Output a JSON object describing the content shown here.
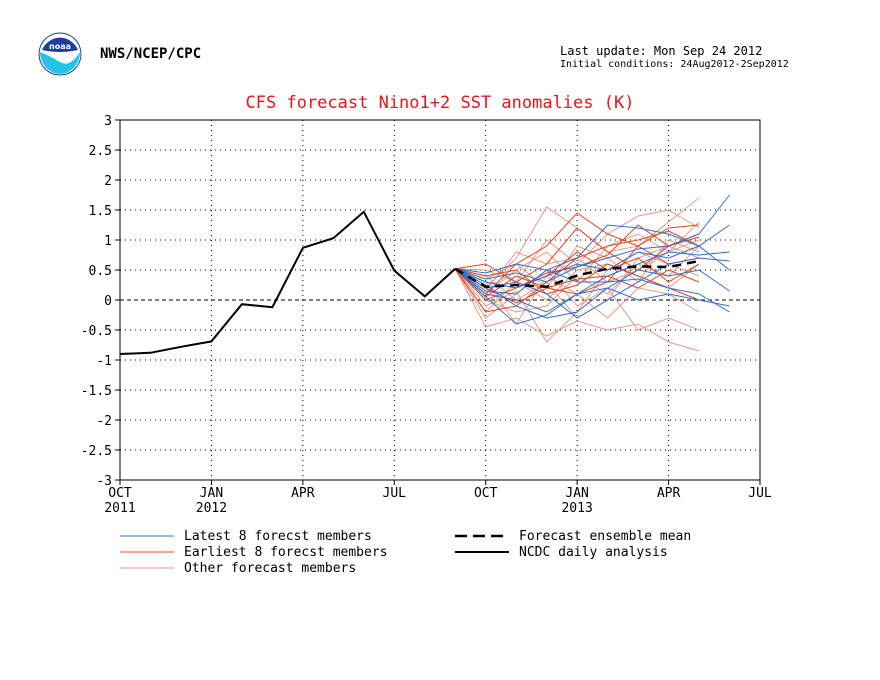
{
  "header": {
    "agency": "NWS/NCEP/CPC",
    "last_update": "Last update: Mon Sep 24 2012",
    "initial_conditions": "Initial conditions: 24Aug2012-2Sep2012",
    "logo_text": "noaa"
  },
  "colors": {
    "title": "#e8141b",
    "latest": "#2f6fcf",
    "earliest": "#e8431b",
    "other": "#e49a86",
    "analysis": "#000000",
    "mean": "#000000"
  },
  "chart_data": {
    "type": "line",
    "title": "CFS forecast Nino1+2 SST anomalies (K)",
    "ylim": [
      -3,
      3
    ],
    "yticks": [
      "3",
      "2.5",
      "2",
      "1.5",
      "1",
      "0.5",
      "0",
      "-0.5",
      "-1",
      "-1.5",
      "-2",
      "-2.5",
      "-3"
    ],
    "xticks": [
      {
        "label": "OCT",
        "year": "2011"
      },
      {
        "label": "JAN",
        "year": "2012"
      },
      {
        "label": "APR",
        "year": ""
      },
      {
        "label": "JUL",
        "year": ""
      },
      {
        "label": "OCT",
        "year": ""
      },
      {
        "label": "JAN",
        "year": "2013"
      },
      {
        "label": "APR",
        "year": ""
      },
      {
        "label": "JUL",
        "year": ""
      }
    ],
    "grid": true,
    "months": [
      "Oct 2011",
      "Nov 2011",
      "Dec 2011",
      "Jan 2012",
      "Feb 2012",
      "Mar 2012",
      "Apr 2012",
      "May 2012",
      "Jun 2012",
      "Jul 2012",
      "Aug 2012",
      "Sep 2012",
      "Oct 2012",
      "Nov 2012",
      "Dec 2012",
      "Jan 2013",
      "Feb 2013",
      "Mar 2013",
      "Apr 2013",
      "May 2013",
      "Jun 2013",
      "Jul 2013"
    ],
    "analysis": {
      "name": "NCDC daily analysis",
      "values": [
        -0.9,
        -0.88,
        -0.78,
        -0.69,
        -0.07,
        -0.12,
        0.87,
        1.03,
        1.47,
        0.49,
        0.06,
        0.52
      ]
    },
    "ensemble_mean": {
      "name": "Forecast ensemble mean",
      "values": [
        0.52,
        0.22,
        0.25,
        0.22,
        0.41,
        0.52,
        0.56,
        0.55,
        0.65
      ]
    },
    "members": {
      "latest": {
        "name": "Latest 8 forecst members",
        "series": [
          [
            0.52,
            0.35,
            0.45,
            0.3,
            0.55,
            0.7,
            0.85,
            0.9,
            1.1,
            1.75
          ],
          [
            0.52,
            0.1,
            0.0,
            -0.2,
            0.1,
            0.4,
            0.6,
            0.8,
            0.75,
            0.8
          ],
          [
            0.52,
            0.2,
            0.3,
            0.1,
            -0.3,
            0.0,
            0.3,
            0.6,
            0.7,
            0.65
          ],
          [
            0.52,
            0.25,
            -0.1,
            -0.3,
            -0.2,
            0.2,
            0.5,
            0.4,
            0.5,
            0.15
          ],
          [
            0.52,
            0.45,
            0.6,
            0.5,
            0.7,
            1.25,
            1.2,
            1.1,
            0.9,
            0.5
          ],
          [
            0.52,
            0.05,
            -0.4,
            -0.25,
            0.1,
            0.2,
            0.0,
            0.1,
            0.0,
            -0.1
          ],
          [
            0.52,
            0.3,
            0.2,
            0.4,
            0.6,
            0.5,
            0.8,
            0.7,
            0.9,
            1.25
          ],
          [
            0.52,
            0.15,
            0.1,
            0.5,
            0.3,
            0.3,
            0.35,
            0.2,
            0.1,
            -0.2
          ]
        ]
      },
      "earliest": {
        "name": "Earliest 8 forecst members",
        "series": [
          [
            0.52,
            0.1,
            0.6,
            0.9,
            1.45,
            1.1,
            0.9,
            1.2,
            1.25
          ],
          [
            0.52,
            0.3,
            0.2,
            0.4,
            0.8,
            0.5,
            0.7,
            0.3,
            0.6
          ],
          [
            0.52,
            -0.2,
            -0.1,
            0.3,
            0.7,
            0.9,
            1.0,
            1.15,
            0.9
          ],
          [
            0.52,
            0.4,
            0.5,
            0.1,
            0.25,
            0.6,
            0.4,
            0.2,
            0.0
          ],
          [
            0.52,
            0.0,
            0.2,
            0.45,
            0.55,
            0.75,
            1.25,
            0.9,
            1.1
          ],
          [
            0.52,
            0.2,
            -0.05,
            0.2,
            0.1,
            0.3,
            0.9,
            0.6,
            0.7
          ],
          [
            0.52,
            0.6,
            0.3,
            0.6,
            1.2,
            0.8,
            0.5,
            0.9,
            1.05
          ],
          [
            0.52,
            0.05,
            0.4,
            0.2,
            0.35,
            0.4,
            0.2,
            0.5,
            0.3
          ]
        ]
      },
      "other": {
        "name": "Other forecast members",
        "series": [
          [
            0.52,
            -0.45,
            -0.3,
            -0.6,
            -0.35,
            -0.5,
            -0.4,
            -0.7,
            -0.85
          ],
          [
            0.52,
            0.2,
            0.7,
            1.55,
            1.2,
            0.8,
            0.9,
            1.3,
            1.7
          ],
          [
            0.52,
            -0.3,
            0.1,
            0.5,
            -0.1,
            0.2,
            -0.5,
            -0.3,
            -0.5
          ],
          [
            0.52,
            0.5,
            0.3,
            1.0,
            0.6,
            1.1,
            1.4,
            1.5,
            1.2
          ],
          [
            0.52,
            0.0,
            -0.2,
            -0.1,
            0.4,
            0.1,
            0.6,
            0.4,
            0.9
          ],
          [
            0.52,
            0.35,
            0.6,
            0.2,
            0.9,
            0.7,
            0.3,
            1.0,
            0.8
          ],
          [
            0.52,
            -0.1,
            0.15,
            -0.7,
            -0.2,
            0.5,
            0.8,
            0.6,
            0.4
          ],
          [
            0.52,
            0.3,
            -0.4,
            0.4,
            0.1,
            -0.3,
            0.2,
            0.1,
            -0.2
          ],
          [
            0.52,
            0.1,
            0.5,
            0.8,
            0.3,
            0.9,
            1.1,
            0.8,
            1.0
          ],
          [
            0.52,
            -0.2,
            0.3,
            0.0,
            0.5,
            0.6,
            0.4,
            0.2,
            0.6
          ],
          [
            0.52,
            0.4,
            0.0,
            0.3,
            -0.3,
            0.0,
            0.7,
            0.9,
            0.7
          ],
          [
            0.52,
            0.15,
            0.8,
            0.6,
            0.7,
            0.3,
            0.5,
            0.8,
            1.3
          ]
        ]
      }
    },
    "legend": [
      {
        "label": "Latest 8 forecst members",
        "key": "latest",
        "style": "thin"
      },
      {
        "label": "Earliest 8 forecst members",
        "key": "earliest",
        "style": "thin"
      },
      {
        "label": "Other forecast members",
        "key": "other",
        "style": "thin"
      },
      {
        "label": "Forecast ensemble mean",
        "key": "mean",
        "style": "dashed"
      },
      {
        "label": "NCDC daily analysis",
        "key": "analysis",
        "style": "solid"
      }
    ],
    "legend_placement": "bottom"
  }
}
